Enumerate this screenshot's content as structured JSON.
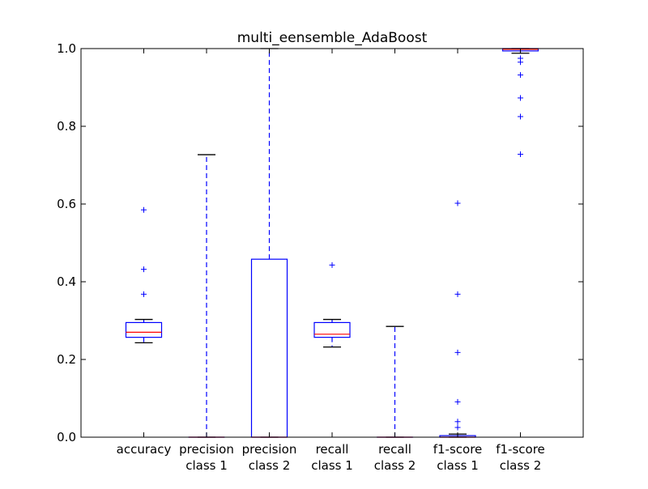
{
  "chart_data": {
    "type": "box",
    "title": "multi_eensemble_AdaBoost",
    "ylim": [
      0.0,
      1.0
    ],
    "y_ticks": [
      "0.0",
      "0.2",
      "0.4",
      "0.6",
      "0.8",
      "1.0"
    ],
    "grid": false,
    "categories": [
      {
        "line1": "accuracy",
        "line2": ""
      },
      {
        "line1": "precision",
        "line2": "class 1"
      },
      {
        "line1": "precision",
        "line2": "class 2"
      },
      {
        "line1": "recall",
        "line2": "class 1"
      },
      {
        "line1": "recall",
        "line2": "class 2"
      },
      {
        "line1": "f1-score",
        "line2": "class 1"
      },
      {
        "line1": "f1-score",
        "line2": "class 2"
      }
    ],
    "boxes": [
      {
        "whisker_low": 0.243,
        "q1": 0.257,
        "median": 0.27,
        "q3": 0.295,
        "whisker_high": 0.303,
        "outliers": [
          0.368,
          0.432,
          0.585
        ]
      },
      {
        "whisker_low": 0.0,
        "q1": 0.0,
        "median": 0.0,
        "q3": 0.0,
        "whisker_high": 0.727,
        "outliers": []
      },
      {
        "whisker_low": 0.0,
        "q1": 0.0,
        "median": 0.0,
        "q3": 0.458,
        "whisker_high": 1.0,
        "outliers": []
      },
      {
        "whisker_low": 0.232,
        "q1": 0.257,
        "median": 0.265,
        "q3": 0.295,
        "whisker_high": 0.303,
        "outliers": [
          0.443
        ]
      },
      {
        "whisker_low": 0.0,
        "q1": 0.0,
        "median": 0.0,
        "q3": 0.0,
        "whisker_high": 0.285,
        "outliers": []
      },
      {
        "whisker_low": 0.0,
        "q1": 0.0,
        "median": 0.0,
        "q3": 0.004,
        "whisker_high": 0.008,
        "outliers": [
          0.025,
          0.04,
          0.091,
          0.218,
          0.368,
          0.602
        ]
      },
      {
        "whisker_low": 0.988,
        "q1": 0.994,
        "median": 0.998,
        "q3": 1.0,
        "whisker_high": 1.0,
        "outliers": [
          0.728,
          0.825,
          0.873,
          0.932,
          0.965,
          0.975
        ]
      }
    ],
    "colors": {
      "box": "#0000ff",
      "median": "#ff0000",
      "whisker": "#0000ff",
      "cap": "#000000",
      "outlier": "#0000ff",
      "axes": "#000000"
    }
  }
}
